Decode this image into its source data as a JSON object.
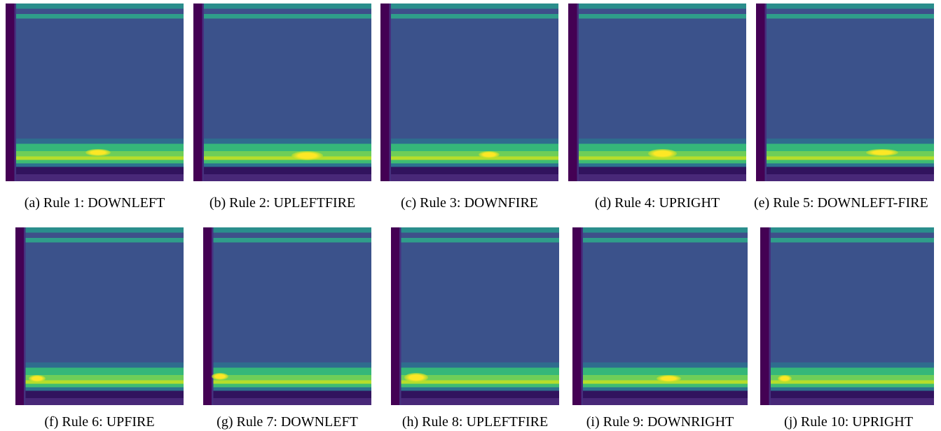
{
  "figure": {
    "panels": [
      {
        "caption": "(a) Rule 1: DOWNLEFT"
      },
      {
        "caption": "(b) Rule 2: UPLEFTFIRE"
      },
      {
        "caption": "(c) Rule 3: DOWNFIRE"
      },
      {
        "caption": "(d) Rule 4: UPRIGHT"
      },
      {
        "caption": "(e) Rule 5: DOWNLEFT-FIRE"
      },
      {
        "caption": "(f) Rule 6: UPFIRE"
      },
      {
        "caption": "(g) Rule 7: DOWNLEFT"
      },
      {
        "caption": "(h) Rule 8: UPLEFTFIRE"
      },
      {
        "caption": "(i) Rule 9: DOWNRIGHT"
      },
      {
        "caption": "(j) Rule 10: UPRIGHT"
      }
    ]
  }
}
